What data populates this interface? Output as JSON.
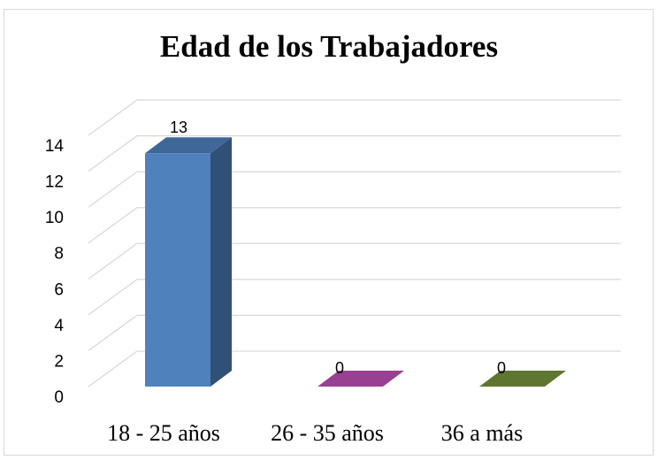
{
  "chart_data": {
    "type": "bar3d",
    "title": "Edad de los Trabajadores",
    "categories": [
      "18 - 25 años",
      "26 - 35 años",
      "36 a más"
    ],
    "values": [
      13,
      0,
      0
    ],
    "colors": [
      "#4f81bd",
      "#c050b8",
      "#77933c"
    ],
    "ylim": [
      0,
      14
    ],
    "yticks": [
      0,
      2,
      4,
      6,
      8,
      10,
      12,
      14
    ],
    "grid": true
  }
}
